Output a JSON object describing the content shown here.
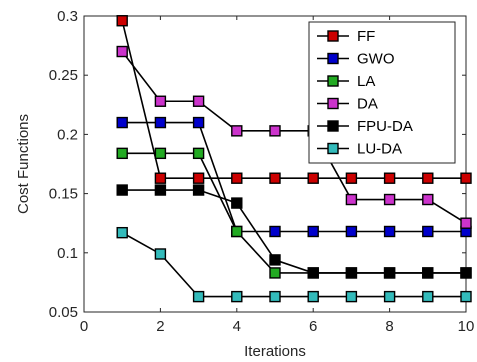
{
  "chart_data": {
    "type": "line",
    "xlabel": "Iterations",
    "ylabel": "Cost Functions",
    "xlim": [
      0,
      10
    ],
    "ylim": [
      0.05,
      0.3
    ],
    "xticks": [
      0,
      2,
      4,
      6,
      8,
      10
    ],
    "yticks": [
      0.05,
      0.1,
      0.15,
      0.2,
      0.25,
      0.3
    ],
    "ytick_labels": [
      "0.05",
      "0.1",
      "0.15",
      "0.2",
      "0.25",
      "0.3"
    ],
    "grid": false,
    "legend_position": "top-right",
    "x": [
      1,
      2,
      3,
      4,
      5,
      6,
      7,
      8,
      9,
      10
    ],
    "series": [
      {
        "name": "FF",
        "color": "#cc0000",
        "values": [
          0.296,
          0.163,
          0.163,
          0.163,
          0.163,
          0.163,
          0.163,
          0.163,
          0.163,
          0.163
        ]
      },
      {
        "name": "GWO",
        "color": "#0000cc",
        "values": [
          0.21,
          0.21,
          0.21,
          0.118,
          0.118,
          0.118,
          0.118,
          0.118,
          0.118,
          0.118
        ]
      },
      {
        "name": "LA",
        "color": "#22aa22",
        "values": [
          0.184,
          0.184,
          0.184,
          0.118,
          0.083,
          0.083,
          0.083,
          0.083,
          0.083,
          0.083
        ]
      },
      {
        "name": "DA",
        "color": "#cc33cc",
        "values": [
          0.27,
          0.228,
          0.228,
          0.203,
          0.203,
          0.203,
          0.145,
          0.145,
          0.145,
          0.125
        ]
      },
      {
        "name": "FPU-DA",
        "color": "#000000",
        "values": [
          0.153,
          0.153,
          0.153,
          0.142,
          0.094,
          0.083,
          0.083,
          0.083,
          0.083,
          0.083
        ]
      },
      {
        "name": "LU-DA",
        "color": "#33bbbb",
        "values": [
          0.117,
          0.099,
          0.063,
          0.063,
          0.063,
          0.063,
          0.063,
          0.063,
          0.063,
          0.063
        ]
      }
    ]
  }
}
